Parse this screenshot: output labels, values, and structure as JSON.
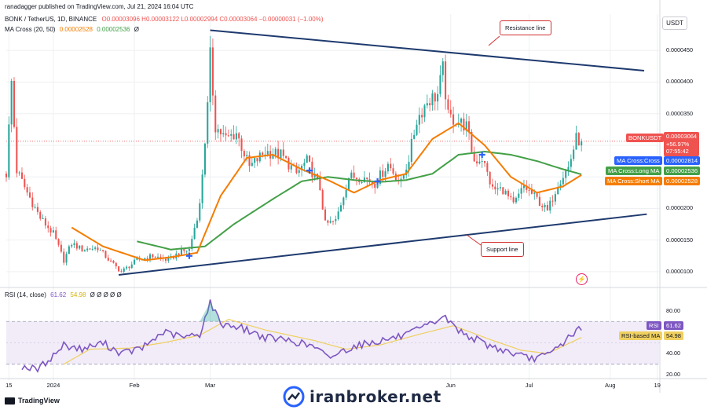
{
  "header": {
    "published": "ranadagger published on TradingView.com, Jul 21, 2024 16:04 UTC",
    "symbol": "BONK / TetherUS, 1D, BINANCE",
    "ohlc": "O0.00003096 H0.00003122 L0.00002994 C0.00003064 −0.00000031 (−1.00%)",
    "ma_label": "MA Cross (20, 50)",
    "ma_short_value": "0.00002528",
    "ma_long_value": "0.00002536",
    "ma_suffix": "Ø"
  },
  "rsi_header": {
    "label": "RSI (14, close)",
    "rsi": "61.62",
    "rsi_ma": "54.98",
    "rest": "Ø Ø Ø Ø Ø"
  },
  "currency": "USDT",
  "annotations": {
    "resistance": "Resistance line",
    "support": "Support line"
  },
  "tags": {
    "bonk_symbol": "BONKUSDT",
    "bonk_price": "0.00003064",
    "bonk_change": "+56.97%",
    "bonk_countdown": "07:55:42",
    "ma_cross_label": "MA Cross:Cross",
    "ma_cross_value": "0.00002814",
    "ma_long_label": "MA Cross:Long MA",
    "ma_long_value": "0.00002536",
    "ma_short_label": "MA Cross:Short MA",
    "ma_short_value": "0.00002528",
    "rsi_label": "RSI",
    "rsi_value": "61.62",
    "rsi_ma_label": "RSI-based MA",
    "rsi_ma_value": "54.98"
  },
  "footer": {
    "tradingview": "TradingView",
    "brand": "iranbroker.net"
  },
  "colors": {
    "up": "#26a69a",
    "down": "#ef5350",
    "ma_short": "#f57c00",
    "ma_long": "#43a047",
    "trend": "#1e3a6e",
    "rsi": "#7e57c2",
    "rsi_ma": "#f0d060",
    "cross": "#2962ff"
  },
  "chart_data": {
    "type": "candlestick",
    "price_axis": {
      "ticks": [
        1e-05,
        1.5e-05,
        2e-05,
        2.5e-05,
        3e-05,
        3.5e-05,
        4e-05,
        4.5e-05
      ],
      "tick_labels": [
        "0.0000100",
        "0.0000150",
        "0.0000200",
        "",
        "",
        "0.0000350",
        "0.0000400",
        "0.0000450"
      ],
      "range": [
        8.5e-06,
        4.95e-05
      ]
    },
    "x_axis": {
      "range": [
        "2023-12-14",
        "2024-08-20"
      ],
      "ticks": [
        "2023-12-15",
        "2024-01-01",
        "2024-02-01",
        "2024-03-01",
        "2024-06-01",
        "2024-07-01",
        "2024-08-01",
        "2024-08-19"
      ],
      "tick_labels": [
        "15",
        "2024",
        "Feb",
        "Mar",
        "Jun",
        "Jul",
        "Aug",
        "19"
      ]
    },
    "current_price": 3.064e-05,
    "close_anchors": [
      [
        "2023-12-14",
        2.55e-05
      ],
      [
        "2023-12-16",
        4e-05
      ],
      [
        "2023-12-18",
        2.6e-05
      ],
      [
        "2023-12-22",
        2.25e-05
      ],
      [
        "2023-12-27",
        1.85e-05
      ],
      [
        "2024-01-01",
        1.6e-05
      ],
      [
        "2024-01-05",
        1.18e-05
      ],
      [
        "2024-01-08",
        1.45e-05
      ],
      [
        "2024-01-12",
        1.35e-05
      ],
      [
        "2024-01-18",
        1.38e-05
      ],
      [
        "2024-01-23",
        1.15e-05
      ],
      [
        "2024-01-27",
        1e-05
      ],
      [
        "2024-02-02",
        1.18e-05
      ],
      [
        "2024-02-08",
        1.25e-05
      ],
      [
        "2024-02-14",
        1.18e-05
      ],
      [
        "2024-02-18",
        1.3e-05
      ],
      [
        "2024-02-22",
        1.35e-05
      ],
      [
        "2024-02-26",
        2.05e-05
      ],
      [
        "2024-02-29",
        3.6e-05
      ],
      [
        "2024-03-01",
        4.4e-05
      ],
      [
        "2024-03-03",
        3.3e-05
      ],
      [
        "2024-03-07",
        3.1e-05
      ],
      [
        "2024-03-11",
        3.2e-05
      ],
      [
        "2024-03-16",
        2.65e-05
      ],
      [
        "2024-03-22",
        2.9e-05
      ],
      [
        "2024-03-28",
        2.85e-05
      ],
      [
        "2024-04-03",
        2.55e-05
      ],
      [
        "2024-04-07",
        2.75e-05
      ],
      [
        "2024-04-12",
        2.32e-05
      ],
      [
        "2024-04-14",
        1.75e-05
      ],
      [
        "2024-04-18",
        1.8e-05
      ],
      [
        "2024-04-23",
        2.5e-05
      ],
      [
        "2024-04-28",
        2.5e-05
      ],
      [
        "2024-05-03",
        2.4e-05
      ],
      [
        "2024-05-08",
        2.7e-05
      ],
      [
        "2024-05-13",
        2.4e-05
      ],
      [
        "2024-05-16",
        2.8e-05
      ],
      [
        "2024-05-19",
        3.4e-05
      ],
      [
        "2024-05-23",
        3.7e-05
      ],
      [
        "2024-05-27",
        3.8e-05
      ],
      [
        "2024-05-29",
        4.2e-05
      ],
      [
        "2024-05-31",
        3.45e-05
      ],
      [
        "2024-06-03",
        3.4e-05
      ],
      [
        "2024-06-07",
        3.3e-05
      ],
      [
        "2024-06-10",
        2.75e-05
      ],
      [
        "2024-06-13",
        2.8e-05
      ],
      [
        "2024-06-17",
        2.3e-05
      ],
      [
        "2024-06-21",
        2.3e-05
      ],
      [
        "2024-06-25",
        2.05e-05
      ],
      [
        "2024-06-29",
        2.35e-05
      ],
      [
        "2024-07-04",
        2.15e-05
      ],
      [
        "2024-07-08",
        1.95e-05
      ],
      [
        "2024-07-12",
        2.4e-05
      ],
      [
        "2024-07-16",
        2.65e-05
      ],
      [
        "2024-07-19",
        3.1e-05
      ],
      [
        "2024-07-21",
        3.064e-05
      ]
    ],
    "ma_short_anchors": [
      [
        "2024-01-08",
        1.7e-05
      ],
      [
        "2024-01-20",
        1.4e-05
      ],
      [
        "2024-02-05",
        1.18e-05
      ],
      [
        "2024-02-15",
        1.23e-05
      ],
      [
        "2024-02-25",
        1.3e-05
      ],
      [
        "2024-03-05",
        2.2e-05
      ],
      [
        "2024-03-15",
        2.8e-05
      ],
      [
        "2024-03-25",
        2.85e-05
      ],
      [
        "2024-04-05",
        2.62e-05
      ],
      [
        "2024-04-15",
        2.45e-05
      ],
      [
        "2024-04-25",
        2.25e-05
      ],
      [
        "2024-05-05",
        2.45e-05
      ],
      [
        "2024-05-15",
        2.55e-05
      ],
      [
        "2024-05-25",
        3.1e-05
      ],
      [
        "2024-06-04",
        3.35e-05
      ],
      [
        "2024-06-14",
        3e-05
      ],
      [
        "2024-06-24",
        2.5e-05
      ],
      [
        "2024-07-04",
        2.25e-05
      ],
      [
        "2024-07-14",
        2.35e-05
      ],
      [
        "2024-07-21",
        2.53e-05
      ]
    ],
    "ma_long_anchors": [
      [
        "2024-02-02",
        1.48e-05
      ],
      [
        "2024-02-15",
        1.35e-05
      ],
      [
        "2024-02-28",
        1.4e-05
      ],
      [
        "2024-03-10",
        1.75e-05
      ],
      [
        "2024-03-25",
        2.15e-05
      ],
      [
        "2024-04-05",
        2.43e-05
      ],
      [
        "2024-04-15",
        2.5e-05
      ],
      [
        "2024-04-25",
        2.45e-05
      ],
      [
        "2024-05-05",
        2.42e-05
      ],
      [
        "2024-05-15",
        2.45e-05
      ],
      [
        "2024-05-25",
        2.55e-05
      ],
      [
        "2024-06-04",
        2.85e-05
      ],
      [
        "2024-06-14",
        2.9e-05
      ],
      [
        "2024-06-24",
        2.85e-05
      ],
      [
        "2024-07-04",
        2.75e-05
      ],
      [
        "2024-07-14",
        2.62e-05
      ],
      [
        "2024-07-21",
        2.54e-05
      ]
    ],
    "trendlines": [
      {
        "name": "Resistance line",
        "from": [
          "2024-03-01",
          4.82e-05
        ],
        "to": [
          "2024-08-14",
          4.18e-05
        ]
      },
      {
        "name": "Support line",
        "from": [
          "2024-01-26",
          9.5e-06
        ],
        "to": [
          "2024-08-15",
          1.91e-05
        ]
      }
    ],
    "cross_points": [
      [
        "2024-02-22",
        1.25e-05
      ],
      [
        "2024-04-08",
        2.6e-05
      ],
      [
        "2024-05-04",
        2.43e-05
      ],
      [
        "2024-06-13",
        2.85e-05
      ]
    ],
    "rsi": {
      "axis_ticks": [
        20,
        40,
        80
      ],
      "axis_tick_labels": [
        "20.00",
        "40.00",
        "80.00"
      ],
      "band": [
        30,
        70
      ],
      "range": [
        18,
        90
      ],
      "rsi_anchors": [
        [
          "2023-12-20",
          28
        ],
        [
          "2023-12-26",
          25
        ],
        [
          "2024-01-01",
          38
        ],
        [
          "2024-01-05",
          48
        ],
        [
          "2024-01-12",
          44
        ],
        [
          "2024-01-20",
          50
        ],
        [
          "2024-01-27",
          40
        ],
        [
          "2024-02-04",
          45
        ],
        [
          "2024-02-12",
          60
        ],
        [
          "2024-02-20",
          55
        ],
        [
          "2024-02-26",
          58
        ],
        [
          "2024-03-01",
          88
        ],
        [
          "2024-03-05",
          68
        ],
        [
          "2024-03-12",
          65
        ],
        [
          "2024-03-22",
          55
        ],
        [
          "2024-04-01",
          52
        ],
        [
          "2024-04-10",
          46
        ],
        [
          "2024-04-15",
          36
        ],
        [
          "2024-04-25",
          47
        ],
        [
          "2024-05-05",
          52
        ],
        [
          "2024-05-15",
          57
        ],
        [
          "2024-05-25",
          68
        ],
        [
          "2024-05-29",
          75
        ],
        [
          "2024-06-05",
          60
        ],
        [
          "2024-06-15",
          48
        ],
        [
          "2024-06-25",
          40
        ],
        [
          "2024-07-01",
          35
        ],
        [
          "2024-07-08",
          38
        ],
        [
          "2024-07-14",
          50
        ],
        [
          "2024-07-19",
          62
        ],
        [
          "2024-07-21",
          61.62
        ]
      ],
      "rsi_ma_anchors": [
        [
          "2024-01-05",
          30
        ],
        [
          "2024-01-15",
          44
        ],
        [
          "2024-01-30",
          45
        ],
        [
          "2024-02-12",
          50
        ],
        [
          "2024-02-26",
          57
        ],
        [
          "2024-03-08",
          72
        ],
        [
          "2024-03-22",
          62
        ],
        [
          "2024-04-10",
          52
        ],
        [
          "2024-04-22",
          44
        ],
        [
          "2024-05-05",
          48
        ],
        [
          "2024-05-20",
          58
        ],
        [
          "2024-06-02",
          66
        ],
        [
          "2024-06-15",
          54
        ],
        [
          "2024-06-28",
          43
        ],
        [
          "2024-07-08",
          40
        ],
        [
          "2024-07-21",
          54.98
        ]
      ]
    }
  }
}
